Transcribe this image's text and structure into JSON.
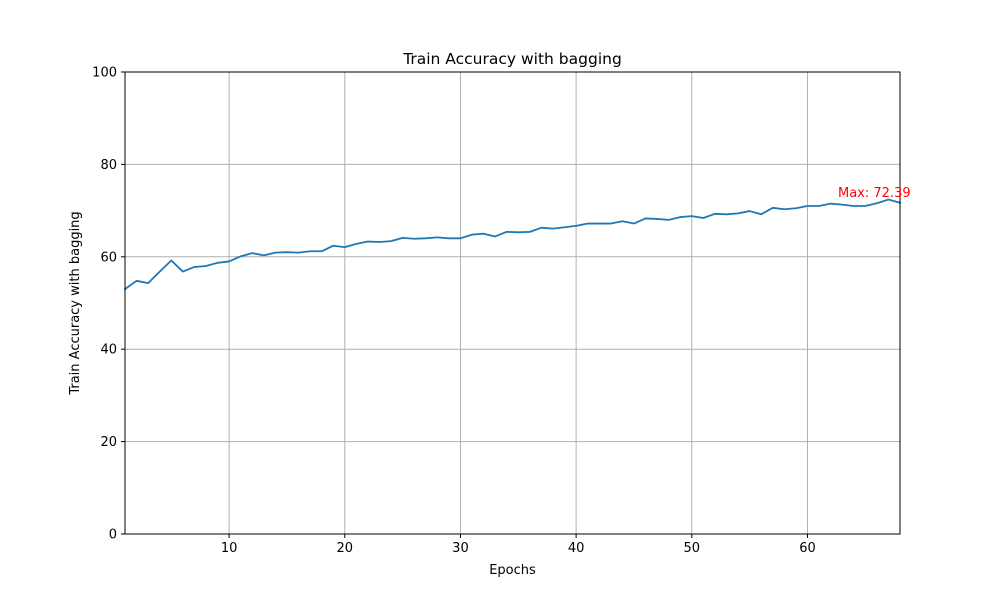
{
  "chart_data": {
    "type": "line",
    "title": "Train Accuracy with bagging",
    "xlabel": "Epochs",
    "ylabel": "Train Accuracy with bagging",
    "xlim": [
      1,
      68
    ],
    "ylim": [
      0,
      100
    ],
    "xticks": [
      10,
      20,
      30,
      40,
      50,
      60
    ],
    "yticks": [
      0,
      20,
      40,
      60,
      80,
      100
    ],
    "grid": true,
    "series": [
      {
        "color": "#1f77b4",
        "x": [
          1,
          2,
          3,
          4,
          5,
          6,
          7,
          8,
          9,
          10,
          11,
          12,
          13,
          14,
          15,
          16,
          17,
          18,
          19,
          20,
          21,
          22,
          23,
          24,
          25,
          26,
          27,
          28,
          29,
          30,
          31,
          32,
          33,
          34,
          35,
          36,
          37,
          38,
          39,
          40,
          41,
          42,
          43,
          44,
          45,
          46,
          47,
          48,
          49,
          50,
          51,
          52,
          53,
          54,
          55,
          56,
          57,
          58,
          59,
          60,
          61,
          62,
          63,
          64,
          65,
          66,
          67,
          68
        ],
        "y": [
          53.0,
          54.8,
          54.3,
          56.8,
          59.2,
          56.8,
          57.8,
          58.0,
          58.7,
          59.0,
          60.1,
          60.8,
          60.3,
          60.9,
          61.0,
          60.9,
          61.2,
          61.2,
          62.4,
          62.1,
          62.8,
          63.3,
          63.2,
          63.4,
          64.1,
          63.9,
          64.0,
          64.2,
          64.0,
          64.0,
          64.8,
          65.0,
          64.4,
          65.4,
          65.3,
          65.4,
          66.3,
          66.1,
          66.4,
          66.7,
          67.2,
          67.2,
          67.2,
          67.7,
          67.2,
          68.3,
          68.2,
          68.0,
          68.6,
          68.8,
          68.4,
          69.3,
          69.2,
          69.4,
          69.9,
          69.2,
          70.6,
          70.3,
          70.5,
          71.0,
          71.0,
          71.5,
          71.3,
          71.0,
          71.0,
          71.6,
          72.39,
          71.7
        ]
      }
    ],
    "annotation": {
      "text": "Max: 72.39",
      "color": "#ff0000",
      "x": 67,
      "y": 72.39
    }
  }
}
